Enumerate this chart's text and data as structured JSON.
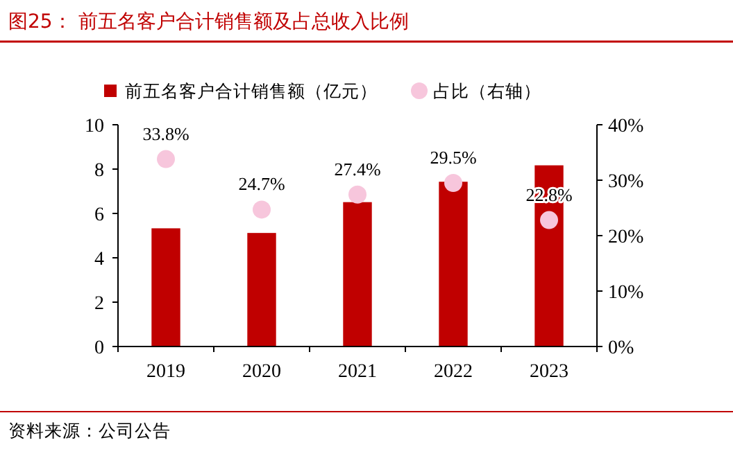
{
  "chart_data": {
    "type": "bar",
    "title": "图25：  前五名客户合计销售额及占总收入比例",
    "categories": [
      "2019",
      "2020",
      "2021",
      "2022",
      "2023"
    ],
    "series": [
      {
        "name": "前五名客户合计销售额（亿元）",
        "color": "#c00000",
        "values": [
          5.33,
          5.12,
          6.51,
          7.43,
          8.17
        ]
      },
      {
        "name": "占比（右轴）",
        "type": "scatter",
        "axis": "y2",
        "color": "#f7c6dc",
        "values": [
          33.8,
          24.7,
          27.4,
          29.5,
          22.8
        ],
        "value_labels": [
          "33.8%",
          "24.7%",
          "27.4%",
          "29.5%",
          "22.8%"
        ]
      }
    ],
    "ylim": [
      0,
      10
    ],
    "yticks": [
      0,
      2,
      4,
      6,
      8,
      10
    ],
    "y2lim": [
      0,
      40
    ],
    "y2ticks": [
      {
        "value": 0,
        "label": "0%"
      },
      {
        "value": 10,
        "label": "10%"
      },
      {
        "value": 20,
        "label": "20%"
      },
      {
        "value": 30,
        "label": "30%"
      },
      {
        "value": 40,
        "label": "40%"
      }
    ],
    "legend": "top",
    "marker": "circle",
    "grid": false,
    "annotations": [
      "资料来源：公司公告"
    ]
  }
}
